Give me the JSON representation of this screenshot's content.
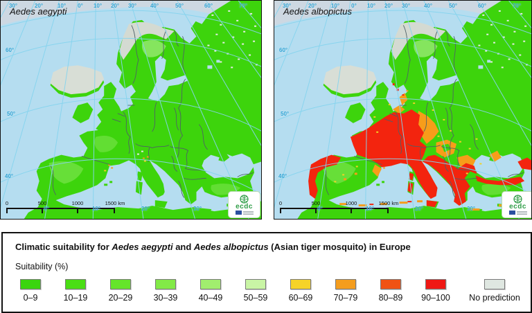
{
  "maps": [
    {
      "title": "Aedes aegypti"
    },
    {
      "title": "Aedes albopictus"
    }
  ],
  "graticule": {
    "top_labels": [
      "30°",
      "20°",
      "10°",
      "0°",
      "10°",
      "20°",
      "30°",
      "40°",
      "50°",
      "60°",
      "70°"
    ],
    "left_labels": [
      "60°",
      "50°",
      "40°"
    ],
    "bottom_labels": [
      "0°",
      "10°",
      "20°",
      "30°"
    ]
  },
  "scalebar": {
    "labels": [
      "0",
      "500",
      "1000",
      "1500 km"
    ]
  },
  "logo": {
    "name": "ecdc"
  },
  "legend": {
    "title": {
      "prefix": "Climatic suitability for ",
      "species1": "Aedes aegypti",
      "middle": " and ",
      "species2": "Aedes albopictus",
      "suffix": " (Asian tiger mosquito) in Europe"
    },
    "axis_label": "Suitability (%)",
    "items": [
      {
        "label": "0–9",
        "color": "#3ad50e"
      },
      {
        "label": "10–19",
        "color": "#4ade14"
      },
      {
        "label": "20–29",
        "color": "#65e52a"
      },
      {
        "label": "30–39",
        "color": "#82ea47"
      },
      {
        "label": "40–49",
        "color": "#a1ee6e"
      },
      {
        "label": "50–59",
        "color": "#c9f5a5"
      },
      {
        "label": "60–69",
        "color": "#f6d328"
      },
      {
        "label": "70–79",
        "color": "#f49d1e"
      },
      {
        "label": "80–89",
        "color": "#f05213"
      },
      {
        "label": "90–100",
        "color": "#ef1814"
      },
      {
        "label": "No prediction",
        "color": "#dfe7e1"
      }
    ]
  }
}
